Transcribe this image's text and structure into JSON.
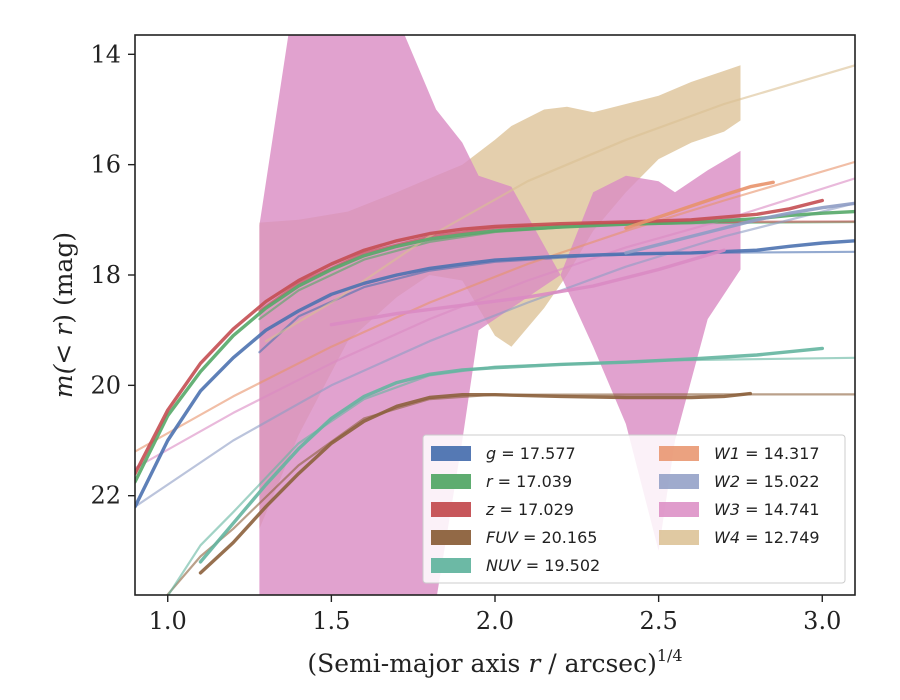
{
  "chart_data": {
    "type": "line",
    "xlabel_main": "(Semi-major axis ",
    "xlabel_var": "r",
    "xlabel_unit": " / arcsec)",
    "xlabel_exp": "1/4",
    "ylabel_pre": "m(",
    "ylabel_var": "< r",
    "ylabel_post": ") (mag)",
    "xlim": [
      0.9,
      3.1
    ],
    "ylim": [
      23.8,
      13.65
    ],
    "xticks": [
      1.0,
      1.5,
      2.0,
      2.5,
      3.0
    ],
    "xtick_labels": [
      "1.0",
      "1.5",
      "2.0",
      "2.5",
      "3.0"
    ],
    "yticks": [
      14,
      16,
      18,
      20,
      22
    ],
    "ytick_labels": [
      "14",
      "16",
      "18",
      "20",
      "22"
    ],
    "legend_position": "lower-right",
    "series": [
      {
        "id": "g",
        "name_var": "g",
        "name_val": " = 17.577",
        "color": "#4c72b0",
        "data": [
          [
            0.9,
            22.2
          ],
          [
            1.0,
            21.0
          ],
          [
            1.1,
            20.1
          ],
          [
            1.2,
            19.5
          ],
          [
            1.3,
            19.0
          ],
          [
            1.4,
            18.65
          ],
          [
            1.5,
            18.35
          ],
          [
            1.6,
            18.15
          ],
          [
            1.7,
            18.0
          ],
          [
            1.8,
            17.88
          ],
          [
            1.9,
            17.8
          ],
          [
            2.0,
            17.73
          ],
          [
            2.2,
            17.66
          ],
          [
            2.4,
            17.62
          ],
          [
            2.6,
            17.6
          ],
          [
            2.8,
            17.55
          ],
          [
            2.9,
            17.48
          ],
          [
            3.0,
            17.42
          ],
          [
            3.1,
            17.38
          ]
        ],
        "model": [
          [
            1.28,
            19.4
          ],
          [
            1.4,
            18.75
          ],
          [
            1.6,
            18.22
          ],
          [
            1.8,
            17.92
          ],
          [
            2.0,
            17.76
          ],
          [
            2.3,
            17.65
          ],
          [
            2.6,
            17.6
          ],
          [
            3.1,
            17.58
          ]
        ]
      },
      {
        "id": "r",
        "name_var": "r",
        "name_val": " = 17.039",
        "color": "#55a868",
        "data": [
          [
            0.9,
            21.75
          ],
          [
            1.0,
            20.55
          ],
          [
            1.1,
            19.75
          ],
          [
            1.2,
            19.1
          ],
          [
            1.3,
            18.6
          ],
          [
            1.4,
            18.2
          ],
          [
            1.5,
            17.9
          ],
          [
            1.6,
            17.65
          ],
          [
            1.7,
            17.48
          ],
          [
            1.8,
            17.35
          ],
          [
            1.9,
            17.27
          ],
          [
            2.0,
            17.2
          ],
          [
            2.2,
            17.13
          ],
          [
            2.4,
            17.08
          ],
          [
            2.6,
            17.05
          ],
          [
            2.8,
            16.98
          ],
          [
            2.9,
            16.92
          ],
          [
            3.0,
            16.88
          ],
          [
            3.1,
            16.85
          ]
        ],
        "model": [
          [
            1.28,
            18.8
          ],
          [
            1.4,
            18.28
          ],
          [
            1.6,
            17.72
          ],
          [
            1.8,
            17.4
          ],
          [
            2.0,
            17.22
          ],
          [
            2.3,
            17.1
          ],
          [
            2.6,
            17.06
          ],
          [
            3.1,
            17.04
          ]
        ]
      },
      {
        "id": "z",
        "name_var": "z",
        "name_val": " = 17.029",
        "color": "#c44e52",
        "data": [
          [
            0.9,
            21.6
          ],
          [
            1.0,
            20.45
          ],
          [
            1.1,
            19.6
          ],
          [
            1.2,
            18.98
          ],
          [
            1.3,
            18.48
          ],
          [
            1.4,
            18.1
          ],
          [
            1.5,
            17.8
          ],
          [
            1.6,
            17.55
          ],
          [
            1.7,
            17.38
          ],
          [
            1.8,
            17.25
          ],
          [
            1.9,
            17.17
          ],
          [
            2.0,
            17.12
          ],
          [
            2.2,
            17.07
          ],
          [
            2.4,
            17.04
          ],
          [
            2.6,
            17.0
          ],
          [
            2.8,
            16.9
          ],
          [
            2.9,
            16.8
          ],
          [
            3.0,
            16.65
          ]
        ],
        "model": [
          [
            1.28,
            18.65
          ],
          [
            1.4,
            18.15
          ],
          [
            1.6,
            17.6
          ],
          [
            1.8,
            17.3
          ],
          [
            2.0,
            17.15
          ],
          [
            2.3,
            17.07
          ],
          [
            2.6,
            17.04
          ],
          [
            3.1,
            17.03
          ]
        ]
      },
      {
        "id": "fuv",
        "name_var": "FUV",
        "name_val": " = 20.165",
        "color": "#8c613c",
        "data": [
          [
            1.1,
            23.4
          ],
          [
            1.2,
            22.85
          ],
          [
            1.3,
            22.2
          ],
          [
            1.4,
            21.6
          ],
          [
            1.5,
            21.05
          ],
          [
            1.6,
            20.65
          ],
          [
            1.7,
            20.38
          ],
          [
            1.8,
            20.22
          ],
          [
            1.9,
            20.17
          ],
          [
            2.0,
            20.17
          ],
          [
            2.2,
            20.2
          ],
          [
            2.4,
            20.22
          ],
          [
            2.6,
            20.22
          ],
          [
            2.7,
            20.2
          ],
          [
            2.78,
            20.15
          ]
        ],
        "model": [
          [
            0.97,
            24.0
          ],
          [
            1.1,
            23.1
          ],
          [
            1.2,
            22.6
          ],
          [
            1.4,
            21.45
          ],
          [
            1.6,
            20.6
          ],
          [
            1.8,
            20.25
          ],
          [
            2.0,
            20.17
          ],
          [
            2.5,
            20.165
          ],
          [
            3.1,
            20.165
          ]
        ]
      },
      {
        "id": "nuv",
        "name_var": "NUV",
        "name_val": " = 19.502",
        "color": "#64b5a0",
        "data": [
          [
            1.1,
            23.2
          ],
          [
            1.2,
            22.5
          ],
          [
            1.3,
            21.8
          ],
          [
            1.4,
            21.15
          ],
          [
            1.5,
            20.6
          ],
          [
            1.6,
            20.2
          ],
          [
            1.7,
            19.95
          ],
          [
            1.8,
            19.8
          ],
          [
            1.9,
            19.72
          ],
          [
            2.0,
            19.68
          ],
          [
            2.2,
            19.62
          ],
          [
            2.4,
            19.58
          ],
          [
            2.6,
            19.52
          ],
          [
            2.8,
            19.45
          ],
          [
            3.0,
            19.33
          ]
        ],
        "model": [
          [
            0.98,
            24.0
          ],
          [
            1.1,
            22.9
          ],
          [
            1.2,
            22.3
          ],
          [
            1.4,
            21.05
          ],
          [
            1.6,
            20.25
          ],
          [
            1.8,
            19.82
          ],
          [
            2.0,
            19.66
          ],
          [
            2.5,
            19.55
          ],
          [
            3.1,
            19.5
          ]
        ]
      },
      {
        "id": "w1",
        "name_var": "W1",
        "name_val": " = 14.317",
        "color": "#e8926a",
        "data": [
          [
            2.4,
            17.15
          ],
          [
            2.5,
            16.95
          ],
          [
            2.6,
            16.75
          ],
          [
            2.7,
            16.55
          ],
          [
            2.78,
            16.4
          ],
          [
            2.85,
            16.32
          ]
        ],
        "model": [
          [
            0.9,
            21.2
          ],
          [
            1.2,
            20.2
          ],
          [
            1.5,
            19.3
          ],
          [
            1.8,
            18.5
          ],
          [
            2.1,
            17.8
          ],
          [
            2.4,
            17.2
          ],
          [
            2.7,
            16.65
          ],
          [
            3.1,
            15.95
          ]
        ]
      },
      {
        "id": "w2",
        "name_var": "W2",
        "name_val": " = 15.022",
        "color": "#8e9cc4",
        "data": [
          [
            2.4,
            17.6
          ],
          [
            2.5,
            17.45
          ],
          [
            2.6,
            17.3
          ],
          [
            2.7,
            17.15
          ],
          [
            2.8,
            17.0
          ],
          [
            2.9,
            16.88
          ],
          [
            3.0,
            16.78
          ],
          [
            3.1,
            16.7
          ]
        ],
        "model": [
          [
            0.9,
            22.2
          ],
          [
            1.2,
            21.0
          ],
          [
            1.5,
            20.0
          ],
          [
            1.8,
            19.2
          ],
          [
            2.1,
            18.5
          ],
          [
            2.4,
            17.85
          ],
          [
            2.7,
            17.3
          ],
          [
            3.1,
            16.7
          ]
        ]
      },
      {
        "id": "w3",
        "name_var": "W3",
        "name_val": " = 14.741",
        "color": "#da8bc3",
        "data": [
          [
            1.5,
            18.9
          ],
          [
            1.7,
            18.7
          ],
          [
            1.9,
            18.55
          ],
          [
            2.1,
            18.4
          ],
          [
            2.3,
            18.2
          ],
          [
            2.5,
            17.9
          ],
          [
            2.7,
            17.55
          ]
        ],
        "band": [
          [
            1.28,
            23.9,
            17.1
          ],
          [
            1.37,
            23.9,
            13.6
          ],
          [
            1.5,
            23.9,
            13.6
          ],
          [
            1.72,
            23.9,
            13.6
          ],
          [
            1.82,
            23.9,
            15.0
          ],
          [
            1.9,
            21.0,
            15.6
          ],
          [
            1.95,
            19.0,
            16.2
          ],
          [
            2.05,
            18.6,
            16.4
          ],
          [
            2.2,
            18.0,
            18.0
          ],
          [
            2.3,
            19.3,
            16.5
          ],
          [
            2.4,
            20.7,
            16.2
          ],
          [
            2.5,
            23.0,
            16.3
          ],
          [
            2.55,
            21.0,
            16.5
          ],
          [
            2.65,
            18.8,
            16.1
          ],
          [
            2.75,
            17.9,
            15.75
          ]
        ],
        "model": [
          [
            0.9,
            21.5
          ],
          [
            1.2,
            20.5
          ],
          [
            1.5,
            19.6
          ],
          [
            1.8,
            18.8
          ],
          [
            2.1,
            18.1
          ],
          [
            2.4,
            17.5
          ],
          [
            2.7,
            17.0
          ],
          [
            3.1,
            16.25
          ]
        ]
      },
      {
        "id": "w4",
        "name_var": "W4",
        "name_val": " = 12.749",
        "color": "#dbbf92",
        "band": [
          [
            1.28,
            22.6,
            17.05
          ],
          [
            1.4,
            20.9,
            17.0
          ],
          [
            1.55,
            19.2,
            16.85
          ],
          [
            1.7,
            18.4,
            16.5
          ],
          [
            1.8,
            18.0,
            16.25
          ],
          [
            1.9,
            18.1,
            16.0
          ],
          [
            2.0,
            19.1,
            15.55
          ],
          [
            2.05,
            19.3,
            15.3
          ],
          [
            2.15,
            18.6,
            15.0
          ],
          [
            2.22,
            18.0,
            14.95
          ],
          [
            2.3,
            17.2,
            15.05
          ],
          [
            2.4,
            16.5,
            14.9
          ],
          [
            2.5,
            15.9,
            14.75
          ],
          [
            2.6,
            15.6,
            14.5
          ],
          [
            2.7,
            15.4,
            14.3
          ],
          [
            2.75,
            15.2,
            14.2
          ]
        ],
        "model": [
          [
            1.3,
            19.2
          ],
          [
            1.5,
            18.5
          ],
          [
            1.8,
            17.3
          ],
          [
            2.1,
            16.3
          ],
          [
            2.4,
            15.55
          ],
          [
            2.7,
            14.9
          ],
          [
            3.1,
            14.2
          ]
        ]
      }
    ]
  }
}
